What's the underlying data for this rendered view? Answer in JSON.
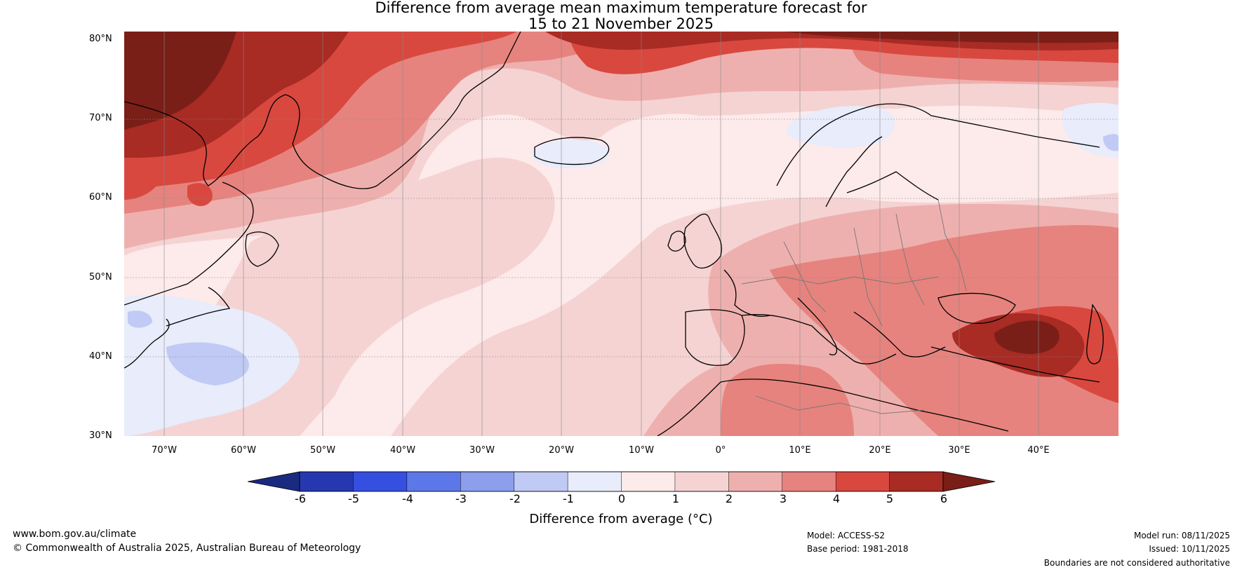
{
  "title": {
    "line1": "Difference from average mean maximum temperature forecast for",
    "line2": "15 to 21 November 2025"
  },
  "map": {
    "lat_labels": [
      "80°N",
      "70°N",
      "60°N",
      "50°N",
      "40°N",
      "30°N"
    ],
    "lon_labels": [
      "70°W",
      "60°W",
      "50°W",
      "40°W",
      "30°W",
      "20°W",
      "10°W",
      "0°",
      "10°E",
      "20°E",
      "30°E",
      "40°E"
    ],
    "lat_range": [
      30,
      81
    ],
    "lon_range": [
      -75,
      50
    ]
  },
  "legend": {
    "label": "Difference from average (°C)",
    "ticks": [
      "-6",
      "-5",
      "-4",
      "-3",
      "-2",
      "-1",
      "0",
      "1",
      "2",
      "3",
      "4",
      "5",
      "6"
    ],
    "colors": {
      "below_-6": "#1a2a80",
      "-6_to_-5": "#2638b0",
      "-5_to_-4": "#3550e0",
      "-4_to_-3": "#5c78e8",
      "-3_to_-2": "#8c9eec",
      "-2_to_-1": "#c0caf4",
      "-1_to_0": "#e8ecfb",
      "0_to_1": "#fdeaea",
      "1_to_2": "#f5d3d3",
      "2_to_3": "#eeb0ae",
      "3_to_4": "#e6837e",
      "4_to_5": "#d8483f",
      "5_to_6": "#a82b24",
      "above_6": "#7a1e18"
    }
  },
  "footer": {
    "url": "www.bom.gov.au/climate",
    "copyright": "© Commonwealth of Australia 2025, Australian Bureau of Meteorology",
    "model": "Model: ACCESS-S2",
    "base_period": "Base period: 1981-2018",
    "model_run": "Model run: 08/11/2025",
    "issued": "Issued: 10/11/2025",
    "disclaimer": "Boundaries are not considered authoritative"
  }
}
